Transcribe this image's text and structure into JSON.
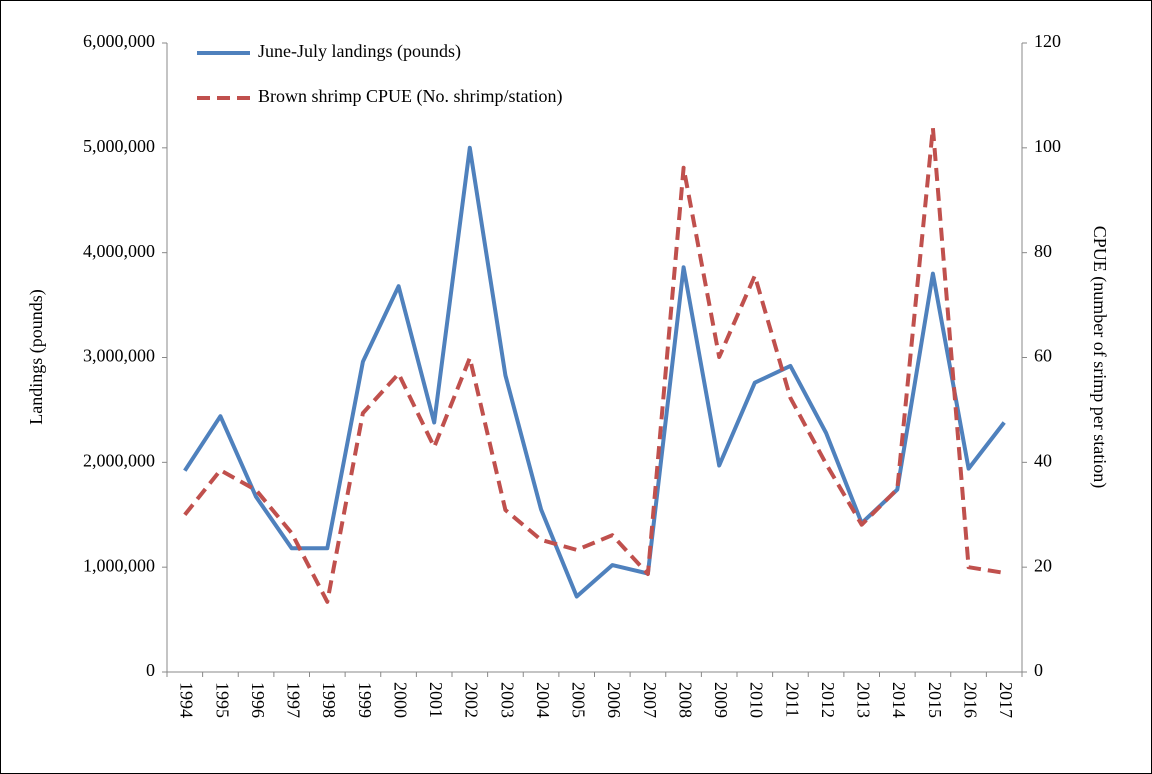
{
  "chart_data": {
    "type": "line",
    "categories": [
      "1994",
      "1995",
      "1996",
      "1997",
      "1998",
      "1999",
      "2000",
      "2001",
      "2002",
      "2003",
      "2004",
      "2005",
      "2006",
      "2007",
      "2008",
      "2009",
      "2010",
      "2011",
      "2012",
      "2013",
      "2014",
      "2015",
      "2016",
      "2017"
    ],
    "series": [
      {
        "name": "June-July landings (pounds)",
        "color": "#4f81bd",
        "dashed": false,
        "values": [
          1920000,
          2440000,
          1670000,
          1180000,
          1180000,
          2960000,
          3680000,
          2380000,
          5000000,
          2830000,
          1550000,
          720000,
          1020000,
          940000,
          3860000,
          1970000,
          2760000,
          2920000,
          2280000,
          1420000,
          1740000,
          3800000,
          1940000,
          2380000
        ]
      },
      {
        "name": "Brown shrimp CPUE (No. shrimp/station)",
        "color": "#c0504d",
        "dashed": true,
        "axis": "y2",
        "values": [
          30,
          38.5,
          34.7,
          26.5,
          13.4,
          49.4,
          56.9,
          42.9,
          59.9,
          30.9,
          25.2,
          23.3,
          26.1,
          18.7,
          96.2,
          60.1,
          75.6,
          52.3,
          39.7,
          28.1,
          34.9,
          103.8,
          20,
          18.9
        ]
      }
    ],
    "ylabel": "Landings (pounds)",
    "y2label": "CPUE (number of srimp per station)",
    "ylim": [
      0,
      6000000
    ],
    "yticks": [
      0,
      {
        "value": 1000000,
        "label": "1,000,000"
      },
      {
        "value": 2000000,
        "label": "2,000,000"
      },
      {
        "value": 3000000,
        "label": "3,000,000"
      },
      {
        "value": 4000000,
        "label": "4,000,000"
      },
      {
        "value": 5000000,
        "label": "5,000,000"
      },
      {
        "value": 6000000,
        "label": "6,000,000"
      }
    ],
    "y2lim": [
      0,
      120
    ],
    "y2ticks": [
      0,
      20,
      40,
      60,
      80,
      100,
      120
    ],
    "legend": "upper-left"
  }
}
